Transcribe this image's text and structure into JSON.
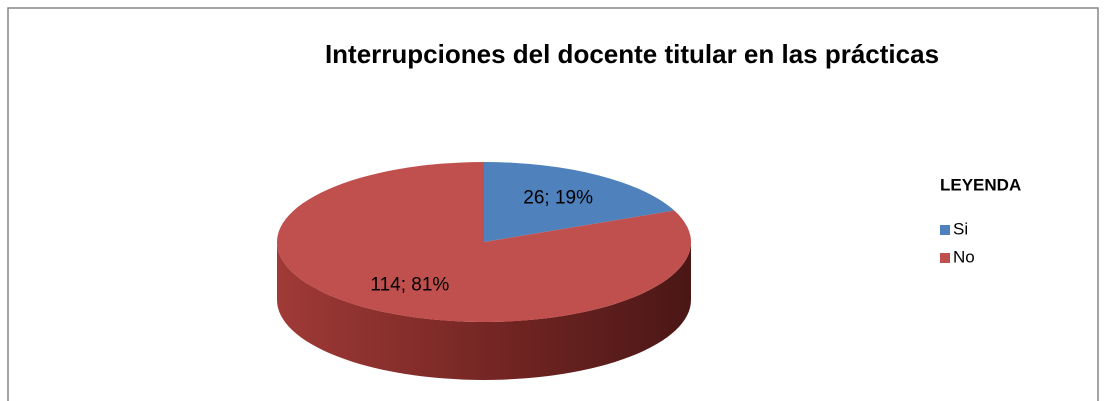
{
  "chart_data": {
    "type": "pie",
    "title": "Interrupciones del docente titular en las prácticas",
    "categories": [
      "Si",
      "No"
    ],
    "values": [
      26,
      114
    ],
    "value_labels": [
      "26; 19%",
      "114; 81%"
    ],
    "colors": [
      "#4f81bd",
      "#c0504d"
    ],
    "legend_title": "LEYENDA",
    "legend": "right"
  }
}
